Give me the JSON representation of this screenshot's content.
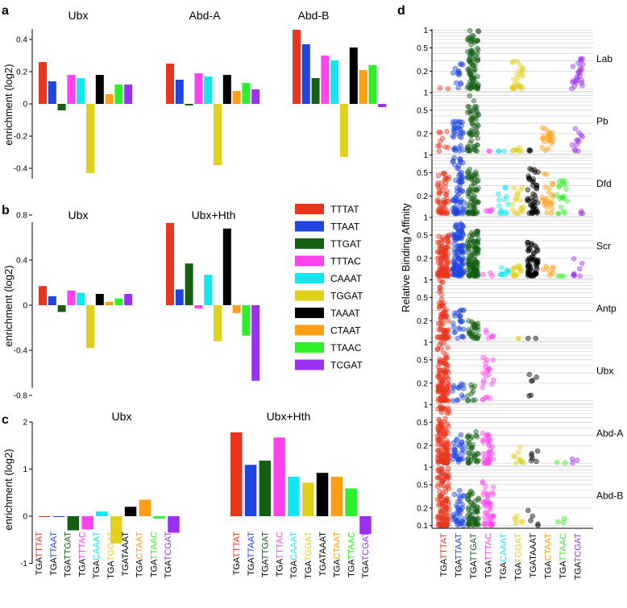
{
  "colors": {
    "TTTAT": "#e8351c",
    "TTAAT": "#1f45e0",
    "TTGAT": "#145f14",
    "TTTAC": "#ff44ee",
    "CAAAT": "#14e6f0",
    "TGGAT": "#e0d11e",
    "TAAAT": "#000000",
    "CTAAT": "#ff9d14",
    "TTAAC": "#2ef02a",
    "TCGAT": "#9b30f0"
  },
  "panel_labels": {
    "a": "a",
    "b": "b",
    "c": "c",
    "d": "d"
  },
  "legend": [
    "TTTAT",
    "TTAAT",
    "TTGAT",
    "TTTAC",
    "CAAAT",
    "TGGAT",
    "TAAAT",
    "CTAAT",
    "TTAAC",
    "TCGAT"
  ],
  "chart_data": [
    {
      "id": "a",
      "type": "bar",
      "ylabel": "enrichment (log2)",
      "ylim": [
        -0.5,
        0.5
      ],
      "yticks": [
        "0.4",
        "0.2",
        "0",
        "-0.2",
        "-0.4"
      ],
      "categories": [
        "TTTAT",
        "TTAAT",
        "TTGAT",
        "TTTAC",
        "CAAAT",
        "TGGAT",
        "TAAAT",
        "CTAAT",
        "TTAAC",
        "TCGAT"
      ],
      "series": [
        {
          "name": "Ubx",
          "values": [
            0.26,
            0.14,
            -0.04,
            0.18,
            0.16,
            -0.43,
            0.18,
            0.06,
            0.12,
            0.12
          ]
        },
        {
          "name": "Abd-A",
          "values": [
            0.25,
            0.15,
            -0.01,
            0.19,
            0.17,
            -0.38,
            0.18,
            0.08,
            0.13,
            0.09
          ]
        },
        {
          "name": "Abd-B",
          "values": [
            0.46,
            0.37,
            0.16,
            0.3,
            0.27,
            -0.33,
            0.35,
            0.21,
            0.24,
            -0.02
          ]
        }
      ]
    },
    {
      "id": "b",
      "type": "bar",
      "ylabel": "enrichment (log2)",
      "ylim": [
        -0.8,
        0.8
      ],
      "yticks": [
        "0.8",
        "0.4",
        "0",
        "-0.4",
        "-0.8"
      ],
      "categories": [
        "TTTAT",
        "TTAAT",
        "TTGAT",
        "TTTAC",
        "CAAAT",
        "TGGAT",
        "TAAAT",
        "CTAAT",
        "TTAAC",
        "TCGAT"
      ],
      "series": [
        {
          "name": "Ubx",
          "values": [
            0.17,
            0.08,
            -0.06,
            0.13,
            0.11,
            -0.38,
            0.1,
            0.03,
            0.06,
            0.1
          ]
        },
        {
          "name": "Ubx+Hth",
          "values": [
            0.73,
            0.14,
            0.37,
            -0.03,
            0.27,
            -0.32,
            0.68,
            -0.07,
            -0.27,
            -0.67
          ]
        }
      ]
    },
    {
      "id": "c",
      "type": "bar",
      "ylabel": "enrichment (log2)",
      "ylim": [
        -1,
        2
      ],
      "yticks": [
        "2",
        "1",
        "0",
        "-1"
      ],
      "categories": [
        "TGATTTAT",
        "TGATTAAT",
        "TGATTGAT",
        "TGATTTAC",
        "TGACAAAT",
        "TGATGGAT",
        "TGATAAAT",
        "TGACTAAT",
        "TGATTAAC",
        "TGATCGAT"
      ],
      "series": [
        {
          "name": "Ubx",
          "values": [
            -0.01,
            -0.01,
            -0.3,
            -0.28,
            0.1,
            -0.58,
            0.2,
            0.35,
            -0.05,
            -0.35
          ]
        },
        {
          "name": "Ubx+Hth",
          "values": [
            1.78,
            1.09,
            1.18,
            1.67,
            0.84,
            0.71,
            0.92,
            0.84,
            0.59,
            -0.38
          ]
        }
      ]
    },
    {
      "id": "d",
      "type": "scatter",
      "ylabel": "Relative Binding Affinity",
      "scale": "log",
      "yticks_top": [
        "1",
        "0.5",
        "0.2"
      ],
      "yticks_last": [
        "1",
        "0.5",
        "0.2",
        "0.1"
      ],
      "categories": [
        "TGATTTAT",
        "TGATTAAT",
        "TGATTGAT",
        "TGATTTAC",
        "TGACAAAT",
        "TGATGGAT",
        "TGATAAAT",
        "TGACTAAT",
        "TGATTAAC",
        "TGATCGAT"
      ],
      "panels": [
        {
          "name": "Lab",
          "counts": [
            2,
            14,
            80,
            0,
            0,
            28,
            0,
            0,
            0,
            26
          ],
          "max": [
            0.12,
            0.3,
            1.0,
            0,
            0,
            0.3,
            0,
            0,
            0,
            0.35
          ],
          "min": [
            0.1,
            0.08,
            0.1,
            0,
            0,
            0.1,
            0,
            0,
            0,
            0.1
          ]
        },
        {
          "name": "Pb",
          "counts": [
            10,
            32,
            58,
            2,
            3,
            8,
            3,
            22,
            0,
            12
          ],
          "max": [
            0.25,
            0.35,
            0.9,
            0.08,
            0.1,
            0.12,
            0.12,
            0.25,
            0,
            0.25
          ]
        },
        {
          "name": "Dfd",
          "counts": [
            55,
            70,
            70,
            5,
            14,
            18,
            45,
            24,
            20,
            3
          ],
          "max": [
            0.5,
            1.0,
            0.6,
            0.12,
            0.35,
            0.3,
            0.6,
            0.5,
            0.45,
            0.12
          ]
        },
        {
          "name": "Scr",
          "counts": [
            110,
            120,
            110,
            3,
            10,
            18,
            60,
            8,
            3,
            8
          ],
          "max": [
            0.5,
            0.8,
            0.6,
            0.12,
            0.15,
            0.15,
            0.4,
            0.15,
            0.1,
            0.2
          ]
        },
        {
          "name": "Antp",
          "counts": [
            70,
            25,
            30,
            6,
            0,
            2,
            2,
            0,
            0,
            0
          ],
          "max": [
            1.0,
            0.35,
            0.2,
            0.15,
            0,
            0.1,
            0.1,
            0,
            0,
            0
          ]
        },
        {
          "name": "Ubx",
          "counts": [
            110,
            14,
            10,
            22,
            0,
            0,
            6,
            0,
            0,
            0
          ],
          "max": [
            1.0,
            0.2,
            0.2,
            0.6,
            0,
            0,
            0.3,
            0,
            0,
            0
          ]
        },
        {
          "name": "Abd-A",
          "counts": [
            120,
            30,
            35,
            35,
            0,
            10,
            6,
            0,
            2,
            3
          ],
          "max": [
            1.0,
            0.35,
            0.35,
            0.35,
            0,
            0.2,
            0.2,
            0,
            0.15,
            0.12
          ]
        },
        {
          "name": "Abd-B",
          "counts": [
            110,
            35,
            55,
            45,
            0,
            6,
            5,
            0,
            3,
            0
          ],
          "max": [
            1.0,
            0.4,
            0.4,
            0.6,
            0,
            0.18,
            0.2,
            0,
            0.18,
            0
          ]
        }
      ]
    }
  ]
}
